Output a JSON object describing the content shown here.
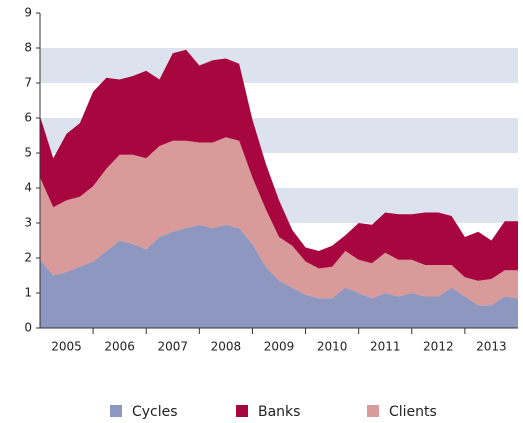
{
  "chart_data": {
    "type": "stacked_area",
    "categories": [
      null,
      null,
      null,
      null,
      null,
      null,
      null,
      null,
      null,
      null,
      null,
      null,
      null,
      null,
      null,
      null,
      null,
      null,
      null,
      null,
      null,
      null,
      null,
      null,
      null,
      null,
      null,
      null,
      null,
      null,
      null,
      null,
      null,
      null,
      null,
      null,
      null
    ],
    "year_labels": [
      "2005",
      "2006",
      "2007",
      "2008",
      "2009",
      "2010",
      "2011",
      "2012",
      "2013"
    ],
    "series": [
      {
        "name": "Cycles",
        "color": "#8e97bf",
        "values": [
          1.95,
          1.5,
          1.6,
          1.75,
          1.9,
          2.2,
          2.5,
          2.4,
          2.25,
          2.6,
          2.75,
          2.85,
          2.95,
          2.85,
          2.95,
          2.85,
          2.4,
          1.75,
          1.35,
          1.15,
          0.95,
          0.85,
          0.85,
          1.15,
          1.0,
          0.85,
          1.0,
          0.9,
          1.0,
          0.9,
          0.9,
          1.15,
          0.9,
          0.65,
          0.65,
          0.9,
          0.85
        ]
      },
      {
        "name": "Clients",
        "color": "#d99a9a",
        "values": [
          2.35,
          1.95,
          2.05,
          2.0,
          2.15,
          2.35,
          2.45,
          2.55,
          2.6,
          2.6,
          2.6,
          2.5,
          2.35,
          2.45,
          2.5,
          2.5,
          1.9,
          1.65,
          1.25,
          1.2,
          0.95,
          0.85,
          0.9,
          1.05,
          0.95,
          1.0,
          1.15,
          1.05,
          0.95,
          0.9,
          0.9,
          0.65,
          0.55,
          0.7,
          0.75,
          0.75,
          0.8
        ]
      },
      {
        "name": "Banks",
        "color": "#a8063f",
        "values": [
          1.75,
          1.4,
          1.9,
          2.1,
          2.7,
          2.6,
          2.15,
          2.25,
          2.5,
          1.9,
          2.5,
          2.6,
          2.2,
          2.35,
          2.25,
          2.2,
          1.65,
          1.3,
          1.05,
          0.45,
          0.4,
          0.5,
          0.6,
          0.45,
          1.05,
          1.1,
          1.15,
          1.3,
          1.3,
          1.5,
          1.5,
          1.4,
          1.15,
          1.4,
          1.1,
          1.4,
          1.4
        ]
      }
    ],
    "ylim": [
      0,
      9
    ],
    "yticks": [
      0,
      1,
      2,
      3,
      4,
      5,
      6,
      7,
      8,
      9
    ],
    "grid": "bands",
    "band_color": "#dde3ee",
    "legend": "bottom"
  }
}
